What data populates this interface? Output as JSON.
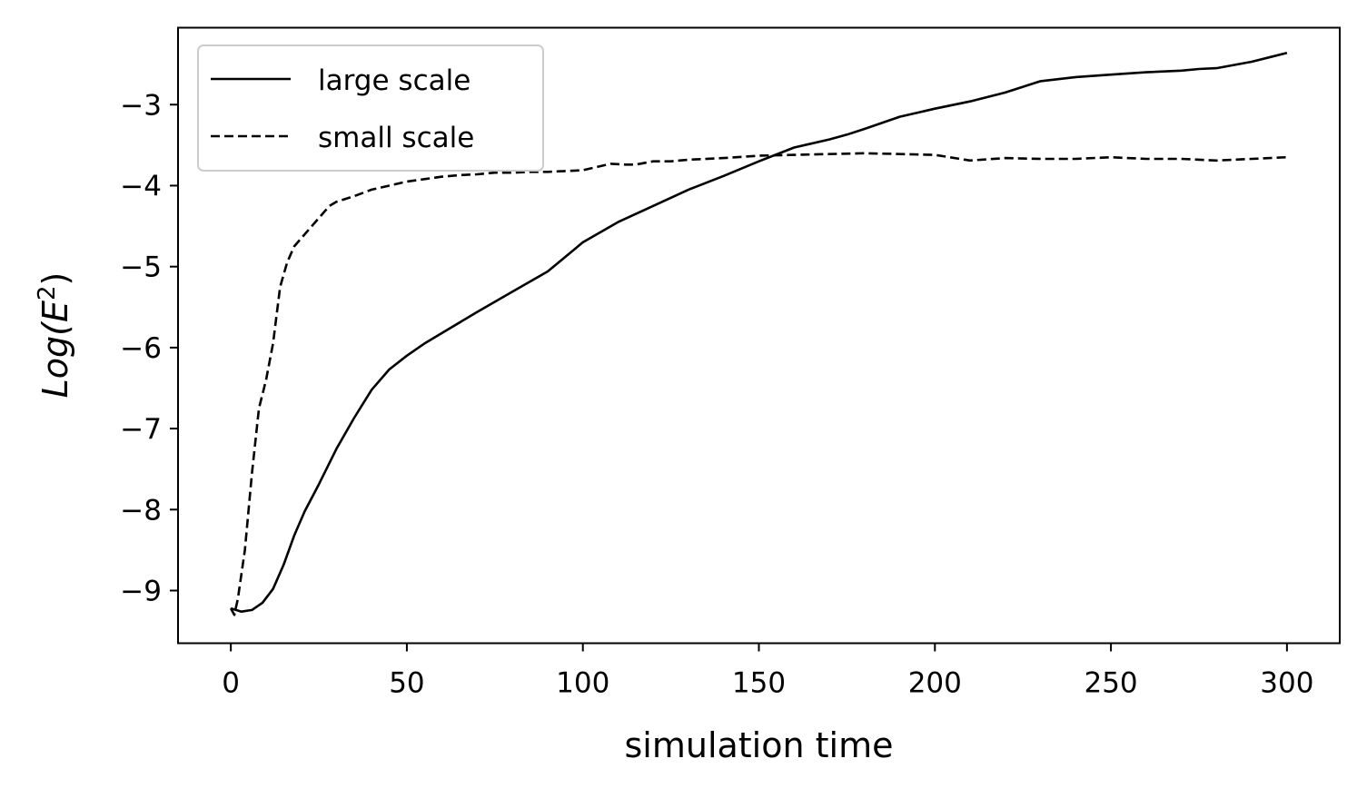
{
  "chart_data": {
    "type": "line",
    "title": "",
    "xlabel": "simulation time",
    "ylabel": {
      "prefix": "Log(",
      "symbol": "E",
      "superscript": "2",
      "suffix": ")"
    },
    "xlim": [
      -15,
      315
    ],
    "ylim": [
      -9.65,
      -2.05
    ],
    "x_ticks": [
      0,
      50,
      100,
      150,
      200,
      250,
      300
    ],
    "x_tick_labels": [
      "0",
      "50",
      "100",
      "150",
      "200",
      "250",
      "300"
    ],
    "y_ticks": [
      -9,
      -8,
      -7,
      -6,
      -5,
      -4,
      -3
    ],
    "y_tick_labels": [
      "−9",
      "−8",
      "−7",
      "−6",
      "−5",
      "−4",
      "−3"
    ],
    "grid": false,
    "legend_position": "upper-left",
    "series": [
      {
        "name": "large scale",
        "style": "solid",
        "color": "#000000",
        "x": [
          0,
          3,
          6,
          9,
          12,
          15,
          18,
          21,
          25,
          30,
          35,
          40,
          45,
          50,
          55,
          60,
          70,
          80,
          90,
          100,
          110,
          120,
          130,
          140,
          150,
          160,
          170,
          175,
          180,
          190,
          200,
          210,
          220,
          230,
          240,
          250,
          260,
          270,
          275,
          280,
          290,
          300
        ],
        "y": [
          -9.22,
          -9.26,
          -9.24,
          -9.15,
          -8.98,
          -8.68,
          -8.32,
          -8.02,
          -7.69,
          -7.25,
          -6.87,
          -6.52,
          -6.27,
          -6.1,
          -5.95,
          -5.82,
          -5.56,
          -5.31,
          -5.06,
          -4.7,
          -4.45,
          -4.25,
          -4.05,
          -3.88,
          -3.7,
          -3.53,
          -3.43,
          -3.37,
          -3.3,
          -3.15,
          -3.05,
          -2.96,
          -2.85,
          -2.71,
          -2.66,
          -2.63,
          -2.6,
          -2.58,
          -2.56,
          -2.55,
          -2.47,
          -2.36
        ]
      },
      {
        "name": "small scale",
        "style": "dashed",
        "color": "#000000",
        "x": [
          0,
          1,
          2,
          4,
          6,
          8,
          10,
          12,
          14,
          16,
          18,
          20,
          24,
          28,
          30,
          35,
          40,
          45,
          50,
          55,
          60,
          65,
          70,
          75,
          80,
          85,
          90,
          95,
          100,
          105,
          108,
          112,
          115,
          120,
          125,
          130,
          140,
          150,
          160,
          170,
          180,
          190,
          200,
          210,
          220,
          230,
          240,
          250,
          260,
          270,
          280,
          290,
          300
        ],
        "y": [
          -9.22,
          -9.3,
          -9.1,
          -8.5,
          -7.55,
          -6.75,
          -6.4,
          -5.95,
          -5.25,
          -4.95,
          -4.75,
          -4.65,
          -4.45,
          -4.25,
          -4.2,
          -4.13,
          -4.05,
          -4.0,
          -3.95,
          -3.92,
          -3.89,
          -3.87,
          -3.86,
          -3.84,
          -3.84,
          -3.83,
          -3.83,
          -3.82,
          -3.81,
          -3.76,
          -3.73,
          -3.74,
          -3.74,
          -3.7,
          -3.7,
          -3.68,
          -3.66,
          -3.63,
          -3.62,
          -3.61,
          -3.6,
          -3.61,
          -3.62,
          -3.69,
          -3.66,
          -3.67,
          -3.67,
          -3.65,
          -3.67,
          -3.67,
          -3.69,
          -3.67,
          -3.65
        ]
      }
    ]
  }
}
